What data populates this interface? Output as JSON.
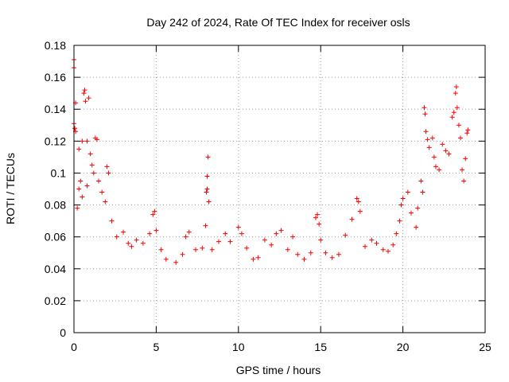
{
  "chart_data": {
    "type": "scatter",
    "title": "Day 242 of 2024, Rate Of TEC Index for receiver osls",
    "xlabel": "GPS time / hours",
    "ylabel": "ROTI / TECUs",
    "xlim": [
      0,
      25
    ],
    "ylim": [
      0,
      0.18
    ],
    "x_ticks": [
      0,
      5,
      10,
      15,
      20,
      25
    ],
    "x_tick_labels": [
      "0",
      "5",
      "10",
      "15",
      "20",
      "25"
    ],
    "y_ticks": [
      0,
      0.02,
      0.04,
      0.06,
      0.08,
      0.1,
      0.12,
      0.14,
      0.16,
      0.18
    ],
    "y_tick_labels": [
      "0",
      "0.02",
      "0.04",
      "0.06",
      "0.08",
      "0.1",
      "0.12",
      "0.14",
      "0.16",
      "0.18"
    ],
    "grid": true,
    "marker": "+",
    "color": "#ff0000",
    "series": [
      {
        "name": "ROTI",
        "points": [
          [
            0.0,
            0.171
          ],
          [
            0.0,
            0.166
          ],
          [
            0.0,
            0.131
          ],
          [
            0.05,
            0.128
          ],
          [
            0.1,
            0.144
          ],
          [
            0.1,
            0.126
          ],
          [
            0.3,
            0.115
          ],
          [
            0.5,
            0.12
          ],
          [
            0.6,
            0.15
          ],
          [
            0.65,
            0.152
          ],
          [
            0.7,
            0.145
          ],
          [
            0.8,
            0.12
          ],
          [
            0.9,
            0.147
          ],
          [
            1.0,
            0.112
          ],
          [
            1.3,
            0.122
          ],
          [
            1.4,
            0.121
          ],
          [
            1.1,
            0.105
          ],
          [
            1.2,
            0.1
          ],
          [
            0.4,
            0.095
          ],
          [
            0.3,
            0.09
          ],
          [
            0.5,
            0.085
          ],
          [
            0.2,
            0.078
          ],
          [
            0.8,
            0.092
          ],
          [
            1.5,
            0.095
          ],
          [
            1.7,
            0.088
          ],
          [
            2.0,
            0.104
          ],
          [
            2.1,
            0.1
          ],
          [
            1.9,
            0.082
          ],
          [
            2.3,
            0.07
          ],
          [
            2.6,
            0.06
          ],
          [
            3.0,
            0.063
          ],
          [
            3.3,
            0.056
          ],
          [
            3.5,
            0.054
          ],
          [
            3.8,
            0.058
          ],
          [
            4.2,
            0.056
          ],
          [
            4.6,
            0.062
          ],
          [
            4.8,
            0.074
          ],
          [
            4.9,
            0.076
          ],
          [
            5.0,
            0.064
          ],
          [
            5.3,
            0.052
          ],
          [
            5.6,
            0.046
          ],
          [
            6.2,
            0.044
          ],
          [
            6.6,
            0.049
          ],
          [
            6.8,
            0.06
          ],
          [
            7.0,
            0.063
          ],
          [
            7.4,
            0.052
          ],
          [
            7.8,
            0.053
          ],
          [
            8.0,
            0.067
          ],
          [
            8.05,
            0.088
          ],
          [
            8.1,
            0.09
          ],
          [
            8.1,
            0.098
          ],
          [
            8.15,
            0.11
          ],
          [
            8.2,
            0.082
          ],
          [
            8.4,
            0.052
          ],
          [
            8.8,
            0.057
          ],
          [
            9.2,
            0.062
          ],
          [
            9.5,
            0.057
          ],
          [
            10.0,
            0.066
          ],
          [
            10.2,
            0.062
          ],
          [
            10.5,
            0.053
          ],
          [
            10.9,
            0.046
          ],
          [
            11.2,
            0.047
          ],
          [
            11.6,
            0.058
          ],
          [
            12.0,
            0.055
          ],
          [
            12.3,
            0.062
          ],
          [
            12.6,
            0.064
          ],
          [
            13.0,
            0.052
          ],
          [
            13.3,
            0.06
          ],
          [
            13.6,
            0.049
          ],
          [
            14.0,
            0.046
          ],
          [
            14.4,
            0.05
          ],
          [
            14.7,
            0.072
          ],
          [
            14.8,
            0.074
          ],
          [
            14.9,
            0.068
          ],
          [
            15.0,
            0.058
          ],
          [
            15.3,
            0.05
          ],
          [
            15.7,
            0.047
          ],
          [
            16.1,
            0.049
          ],
          [
            16.5,
            0.061
          ],
          [
            16.9,
            0.071
          ],
          [
            17.2,
            0.084
          ],
          [
            17.3,
            0.082
          ],
          [
            17.4,
            0.076
          ],
          [
            17.7,
            0.054
          ],
          [
            18.1,
            0.058
          ],
          [
            18.4,
            0.056
          ],
          [
            18.8,
            0.052
          ],
          [
            19.1,
            0.051
          ],
          [
            19.4,
            0.055
          ],
          [
            19.6,
            0.062
          ],
          [
            19.8,
            0.07
          ],
          [
            19.9,
            0.08
          ],
          [
            20.0,
            0.084
          ],
          [
            20.3,
            0.088
          ],
          [
            20.5,
            0.075
          ],
          [
            20.8,
            0.066
          ],
          [
            20.9,
            0.078
          ],
          [
            21.1,
            0.095
          ],
          [
            21.2,
            0.088
          ],
          [
            21.3,
            0.141
          ],
          [
            21.35,
            0.137
          ],
          [
            21.4,
            0.126
          ],
          [
            21.5,
            0.121
          ],
          [
            21.6,
            0.116
          ],
          [
            21.8,
            0.122
          ],
          [
            21.9,
            0.11
          ],
          [
            22.0,
            0.104
          ],
          [
            22.2,
            0.102
          ],
          [
            22.4,
            0.118
          ],
          [
            22.6,
            0.114
          ],
          [
            22.8,
            0.112
          ],
          [
            23.0,
            0.135
          ],
          [
            23.1,
            0.138
          ],
          [
            23.2,
            0.15
          ],
          [
            23.25,
            0.154
          ],
          [
            23.3,
            0.141
          ],
          [
            23.4,
            0.13
          ],
          [
            23.5,
            0.122
          ],
          [
            23.6,
            0.102
          ],
          [
            23.7,
            0.095
          ],
          [
            23.8,
            0.109
          ],
          [
            23.9,
            0.125
          ],
          [
            23.95,
            0.127
          ]
        ]
      }
    ]
  }
}
